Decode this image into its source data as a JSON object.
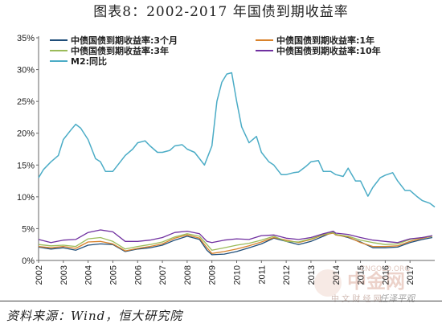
{
  "title": "图表8：2002-2017 年国债到期收益率",
  "source": "资料来源：Wind，恒大研究院",
  "watermark": {
    "brand": "中金网",
    "sub": "中 文 财 经 网",
    "domain": "CNGOLD.ORG",
    "author": "任泽平观"
  },
  "chart_data": {
    "type": "line",
    "title": "",
    "xlabel": "",
    "ylabel": "",
    "xlim": [
      2002,
      2018
    ],
    "ylim": [
      0,
      35
    ],
    "y_ticks": [
      "0%",
      "5%",
      "10%",
      "15%",
      "20%",
      "25%",
      "30%",
      "35%"
    ],
    "x_ticks": [
      "2002",
      "2003",
      "2004",
      "2005",
      "2006",
      "2007",
      "2008",
      "2009",
      "2010",
      "2011",
      "2012",
      "2013",
      "2014",
      "2015",
      "2016",
      "2017"
    ],
    "grid": false,
    "legend_position": "top",
    "series": [
      {
        "name": "中债国债到期收益率:3个月",
        "color": "#1f4e79",
        "x": [
          2002,
          2002.5,
          2003,
          2003.5,
          2004,
          2004.5,
          2005,
          2005.5,
          2006,
          2006.5,
          2007,
          2007.5,
          2008,
          2008.5,
          2008.8,
          2009,
          2009.5,
          2010,
          2010.5,
          2011,
          2011.5,
          2012,
          2012.5,
          2013,
          2013.5,
          2013.9,
          2014,
          2014.5,
          2015,
          2015.5,
          2016,
          2016.5,
          2017,
          2017.5,
          2017.9
        ],
        "y": [
          2.1,
          1.8,
          2.0,
          1.6,
          2.4,
          2.6,
          2.5,
          1.4,
          1.8,
          2.0,
          2.4,
          3.2,
          3.8,
          3.3,
          1.6,
          0.9,
          1.0,
          1.4,
          2.0,
          2.6,
          3.5,
          3.0,
          2.5,
          3.0,
          3.8,
          4.5,
          4.1,
          3.6,
          2.9,
          2.0,
          2.0,
          2.1,
          2.8,
          3.3,
          3.6
        ]
      },
      {
        "name": "中债国债到期收益率:1年",
        "color": "#d9822b",
        "x": [
          2002,
          2002.5,
          2003,
          2003.5,
          2004,
          2004.5,
          2005,
          2005.5,
          2006,
          2006.5,
          2007,
          2007.5,
          2008,
          2008.5,
          2008.8,
          2009,
          2009.5,
          2010,
          2010.5,
          2011,
          2011.5,
          2012,
          2012.5,
          2013,
          2013.5,
          2013.9,
          2014,
          2014.5,
          2015,
          2015.5,
          2016,
          2016.5,
          2017,
          2017.5,
          2017.9
        ],
        "y": [
          2.2,
          2.0,
          2.2,
          1.9,
          2.9,
          3.0,
          2.6,
          1.5,
          1.9,
          2.2,
          2.6,
          3.5,
          4.0,
          3.5,
          2.0,
          1.1,
          1.4,
          1.8,
          2.3,
          2.9,
          3.6,
          3.2,
          2.8,
          3.3,
          4.0,
          4.3,
          4.0,
          3.7,
          2.8,
          2.2,
          2.2,
          2.3,
          3.0,
          3.5,
          3.8
        ]
      },
      {
        "name": "中债国债到期收益率:3年",
        "color": "#9bbb59",
        "x": [
          2002,
          2002.5,
          2003,
          2003.5,
          2004,
          2004.5,
          2005,
          2005.5,
          2006,
          2006.5,
          2007,
          2007.5,
          2008,
          2008.5,
          2008.8,
          2009,
          2009.5,
          2010,
          2010.5,
          2011,
          2011.5,
          2012,
          2012.5,
          2013,
          2013.5,
          2013.9,
          2014,
          2014.5,
          2015,
          2015.5,
          2016,
          2016.5,
          2017,
          2017.5,
          2017.9
        ],
        "y": [
          2.5,
          2.3,
          2.4,
          2.2,
          3.4,
          3.6,
          3.0,
          1.8,
          2.2,
          2.5,
          2.9,
          3.7,
          4.2,
          3.8,
          2.5,
          1.6,
          2.0,
          2.4,
          2.7,
          3.2,
          3.8,
          3.0,
          2.9,
          3.4,
          4.1,
          4.4,
          4.1,
          3.8,
          3.2,
          2.8,
          2.5,
          2.6,
          3.3,
          3.6,
          3.8
        ]
      },
      {
        "name": "中债国债到期收益率:10年",
        "color": "#7030a0",
        "x": [
          2002,
          2002.5,
          2003,
          2003.5,
          2004,
          2004.5,
          2005,
          2005.5,
          2006,
          2006.5,
          2007,
          2007.5,
          2008,
          2008.5,
          2008.8,
          2009,
          2009.5,
          2010,
          2010.5,
          2011,
          2011.5,
          2012,
          2012.5,
          2013,
          2013.5,
          2013.9,
          2014,
          2014.5,
          2015,
          2015.5,
          2016,
          2016.5,
          2017,
          2017.5,
          2017.9
        ],
        "y": [
          3.3,
          2.8,
          3.2,
          3.3,
          4.4,
          4.8,
          4.5,
          3.0,
          3.0,
          3.2,
          3.6,
          4.4,
          4.6,
          4.2,
          3.0,
          2.8,
          3.2,
          3.4,
          3.3,
          3.9,
          4.0,
          3.5,
          3.3,
          3.6,
          4.2,
          4.6,
          4.3,
          4.1,
          3.6,
          3.2,
          3.0,
          2.8,
          3.4,
          3.6,
          3.9
        ]
      },
      {
        "name": "M2:同比",
        "color": "#4bacc6",
        "x": [
          2002,
          2002.2,
          2002.5,
          2002.8,
          2003,
          2003.3,
          2003.5,
          2003.7,
          2004,
          2004.3,
          2004.5,
          2004.7,
          2005,
          2005.3,
          2005.5,
          2005.8,
          2006,
          2006.3,
          2006.5,
          2006.8,
          2007,
          2007.3,
          2007.5,
          2007.8,
          2008,
          2008.3,
          2008.5,
          2008.7,
          2009,
          2009.2,
          2009.4,
          2009.6,
          2009.8,
          2010,
          2010.2,
          2010.5,
          2010.8,
          2011,
          2011.3,
          2011.5,
          2011.8,
          2012,
          2012.3,
          2012.5,
          2012.8,
          2013,
          2013.3,
          2013.5,
          2013.8,
          2014,
          2014.3,
          2014.5,
          2014.8,
          2015,
          2015.3,
          2015.5,
          2015.8,
          2016,
          2016.3,
          2016.5,
          2016.8,
          2017,
          2017.3,
          2017.5,
          2017.8,
          2018
        ],
        "y": [
          13.0,
          14.3,
          15.5,
          16.5,
          19.0,
          20.5,
          21.4,
          20.8,
          19.0,
          16.0,
          15.5,
          14.0,
          14.0,
          15.5,
          16.5,
          17.5,
          18.5,
          18.8,
          18.0,
          17.0,
          17.0,
          17.3,
          18.0,
          18.2,
          17.5,
          17.0,
          16.0,
          15.0,
          18.0,
          25.0,
          28.0,
          29.3,
          29.5,
          25.0,
          21.0,
          18.5,
          19.5,
          17.0,
          15.5,
          15.0,
          13.5,
          13.5,
          13.8,
          13.9,
          14.8,
          15.5,
          15.7,
          14.0,
          14.0,
          13.5,
          13.2,
          14.5,
          12.5,
          12.5,
          10.1,
          11.5,
          13.0,
          13.4,
          13.8,
          12.5,
          11.0,
          11.0,
          10.0,
          9.4,
          9.0,
          8.4
        ]
      }
    ]
  }
}
